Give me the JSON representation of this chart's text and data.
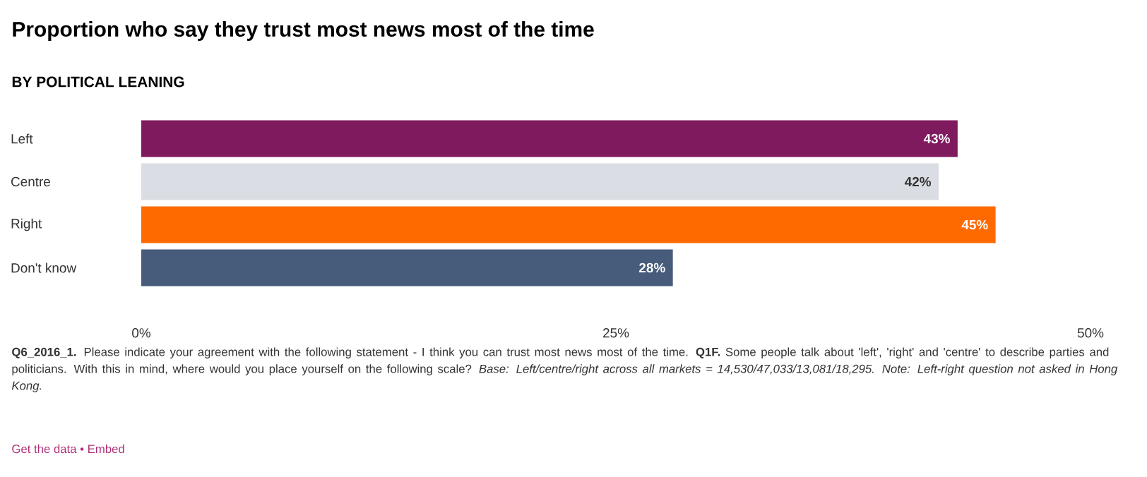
{
  "chart_data": {
    "type": "bar",
    "orientation": "horizontal",
    "title": "Proportion who say they trust most news most of the time",
    "subtitle": "BY POLITICAL LEANING",
    "categories": [
      "Left",
      "Centre",
      "Right",
      "Don't know"
    ],
    "values": [
      43,
      42,
      45,
      28
    ],
    "colors": [
      "#7f1a5e",
      "#dadee4",
      "#ff6a00",
      "#475b7a"
    ],
    "value_labels": [
      "43%",
      "42%",
      "45%",
      "28%"
    ],
    "xlim": [
      0,
      50
    ],
    "xticks": [
      {
        "value": 0,
        "label": "0%"
      },
      {
        "value": 25,
        "label": "25%"
      },
      {
        "value": 50,
        "label": "50%"
      }
    ],
    "annotations": [
      "**Q6_2016_1.** Please indicate your agreement with the following statement - I think you can trust most news most of the time. **Q1F.** Some people talk about 'left', 'right' and 'centre' to describe parties and politicians. With this in mind, where would you place yourself on the following scale? *Base: Left/centre/right across all markets = 14,530/47,033/13,081/18,295. Note: Left-right question not asked in Hong Kong.*",
      "Get the data • Embed"
    ]
  }
}
